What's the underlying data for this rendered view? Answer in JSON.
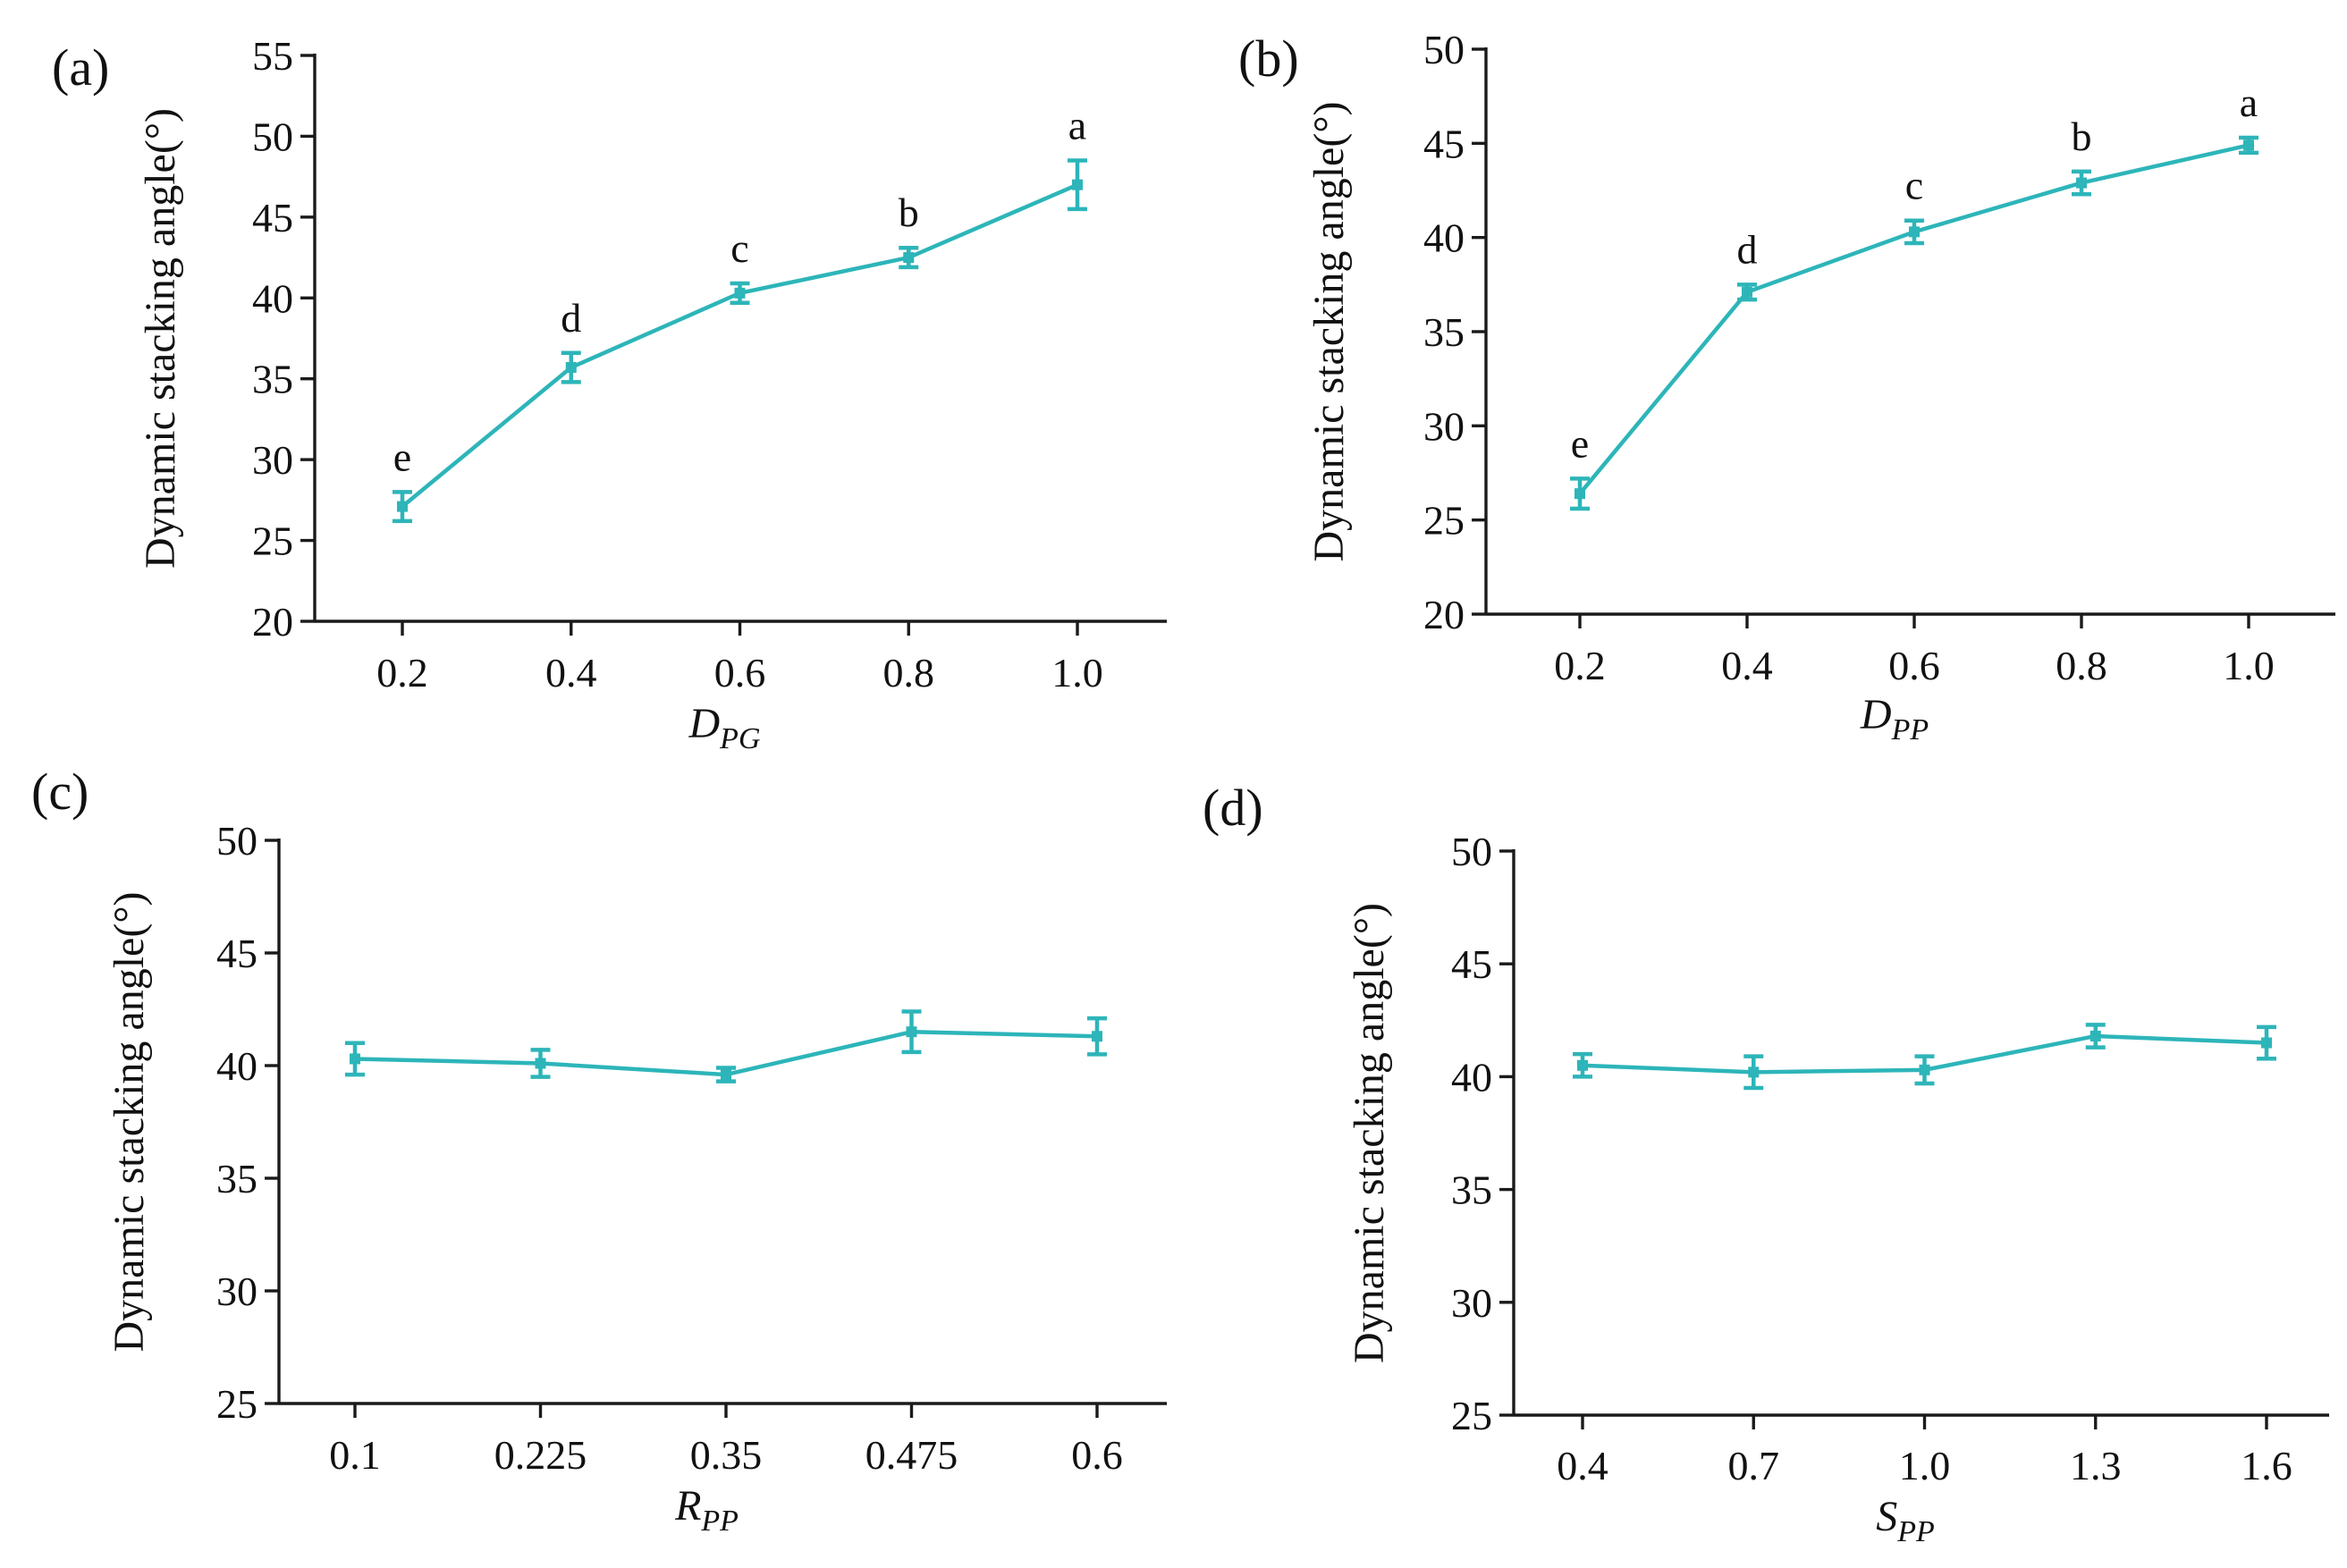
{
  "series_color": "#2db5b9",
  "chart_data": [
    {
      "type": "line",
      "panel_label": "(a)",
      "title": "",
      "xlabel_main": "D",
      "xlabel_sub": "PG",
      "ylabel": "Dynamic stacking angle(°)",
      "categories": [
        "0.2",
        "0.4",
        "0.6",
        "0.8",
        "1.0"
      ],
      "values": [
        27.1,
        35.7,
        40.3,
        42.5,
        47.0
      ],
      "errors": [
        0.9,
        0.9,
        0.6,
        0.6,
        1.5
      ],
      "sig_letters": [
        "e",
        "d",
        "c",
        "b",
        "a"
      ],
      "ylim": [
        20,
        55
      ],
      "yticks": [
        "20",
        "25",
        "30",
        "35",
        "40",
        "45",
        "50",
        "55"
      ],
      "grid": false
    },
    {
      "type": "line",
      "panel_label": "(b)",
      "title": "",
      "xlabel_main": "D",
      "xlabel_sub": "PP",
      "ylabel": "Dynamic stacking angle(°)",
      "categories": [
        "0.2",
        "0.4",
        "0.6",
        "0.8",
        "1.0"
      ],
      "values": [
        26.4,
        37.1,
        40.3,
        42.9,
        44.9
      ],
      "errors": [
        0.8,
        0.4,
        0.6,
        0.6,
        0.4
      ],
      "sig_letters": [
        "e",
        "d",
        "c",
        "b",
        "a"
      ],
      "ylim": [
        20,
        50
      ],
      "yticks": [
        "20",
        "25",
        "30",
        "35",
        "40",
        "45",
        "50"
      ],
      "grid": false
    },
    {
      "type": "line",
      "panel_label": "(c)",
      "title": "",
      "xlabel_main": "R",
      "xlabel_sub": "PP",
      "ylabel": "Dynamic stacking angle(°)",
      "categories": [
        "0.1",
        "0.225",
        "0.35",
        "0.475",
        "0.6"
      ],
      "values": [
        40.3,
        40.1,
        39.6,
        41.5,
        41.3
      ],
      "errors": [
        0.7,
        0.6,
        0.3,
        0.9,
        0.8
      ],
      "sig_letters": [],
      "ylim": [
        25,
        50
      ],
      "yticks": [
        "25",
        "30",
        "35",
        "40",
        "45",
        "50"
      ],
      "grid": false
    },
    {
      "type": "line",
      "panel_label": "(d)",
      "title": "",
      "xlabel_main": "S",
      "xlabel_sub": "PP",
      "ylabel": "Dynamic stacking angle(°)",
      "categories": [
        "0.4",
        "0.7",
        "1.0",
        "1.3",
        "1.6"
      ],
      "values": [
        40.5,
        40.2,
        40.3,
        41.8,
        41.5
      ],
      "errors": [
        0.5,
        0.7,
        0.6,
        0.5,
        0.7
      ],
      "sig_letters": [],
      "ylim": [
        25,
        50
      ],
      "yticks": [
        "25",
        "30",
        "35",
        "40",
        "45",
        "50"
      ],
      "grid": false
    }
  ]
}
